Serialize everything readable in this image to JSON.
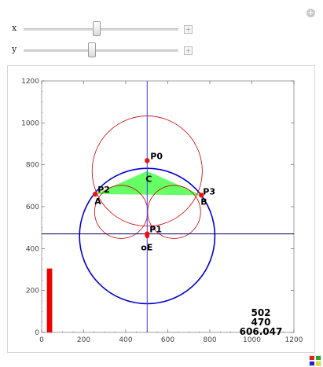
{
  "controls": {
    "sliders": [
      {
        "label": "x",
        "position": 0.47
      },
      {
        "label": "y",
        "position": 0.44
      }
    ]
  },
  "plot": {
    "x_ticks": [
      "0",
      "200",
      "400",
      "600",
      "800",
      "1000",
      "1200"
    ],
    "y_ticks": [
      "0",
      "200",
      "400",
      "600",
      "800",
      "1000",
      "1200"
    ],
    "xlim": [
      0,
      1200
    ],
    "ylim": [
      0,
      1200
    ],
    "points": [
      {
        "label": "P0",
        "x": 502,
        "y": 820
      },
      {
        "label": "P1",
        "x": 502,
        "y": 470
      },
      {
        "label": "P2",
        "x": 255,
        "y": 660
      },
      {
        "label": "P3",
        "x": 760,
        "y": 655
      },
      {
        "label": "A",
        "x": 255,
        "y": 660
      },
      {
        "label": "B",
        "x": 760,
        "y": 655
      },
      {
        "label": "C",
        "x": 502,
        "y": 770
      },
      {
        "label": "oE",
        "x": 502,
        "y": 460
      }
    ],
    "readout": [
      "502",
      "470",
      "606.047"
    ],
    "bar_value": 305,
    "colors": {
      "blue": "#0000cc",
      "red": "#cc0000",
      "green": "#66ff66",
      "crosshair_v": "#3a3aff",
      "crosshair_h": "#000066"
    }
  }
}
